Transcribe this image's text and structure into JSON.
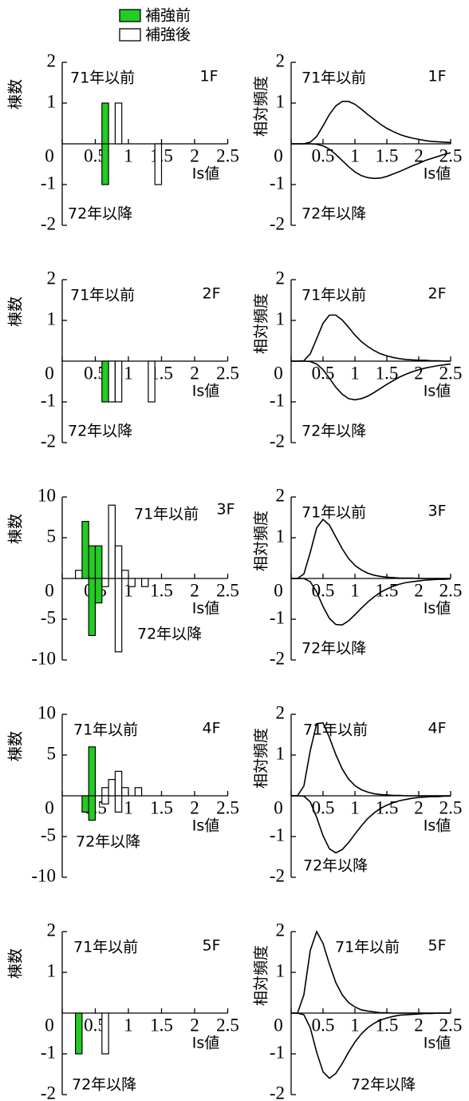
{
  "chart_data": [
    {
      "type": "histogram",
      "label": "1F",
      "upper_label": "71年以前",
      "lower_label": "72年以降",
      "xlabel": "Is値",
      "ylabel": "棟数",
      "bins": [
        0.6,
        0.7,
        0.8,
        0.9,
        1,
        1.1,
        1.2,
        1.3,
        1.4,
        1.5
      ],
      "series": [
        {
          "name": "補強前",
          "color": "#22cc22",
          "values": [
            1,
            0,
            0,
            0,
            0,
            0,
            0,
            0,
            0
          ]
        },
        {
          "name": "補強後",
          "color": "#ffffff",
          "values": [
            0,
            0,
            1,
            0,
            0,
            0,
            0,
            0,
            0
          ]
        },
        {
          "color": "#22cc22",
          "values": [
            -1,
            0,
            0,
            0,
            0,
            0,
            0,
            0,
            0
          ]
        },
        {
          "color": "#ffffff",
          "values": [
            0,
            0,
            0,
            0,
            0,
            0,
            0,
            0,
            -1
          ]
        }
      ],
      "xlim": [
        0,
        2.5
      ],
      "xticks": [
        0,
        0.5,
        1,
        1.5,
        2,
        2.5
      ],
      "ylim": [
        -2,
        2
      ],
      "yticks": [
        -2,
        -1,
        1,
        2
      ]
    },
    {
      "type": "line",
      "label": "1F",
      "upper_label": "71年以前",
      "lower_label": "72年以降",
      "xlabel": "Is値",
      "ylabel": "相対頻度",
      "x": [
        0,
        0.1,
        0.2,
        0.3,
        0.4,
        0.5,
        0.6,
        0.7,
        0.8,
        0.9,
        1,
        1.1,
        1.2,
        1.3,
        1.4,
        1.5,
        1.6,
        1.7,
        1.8,
        1.9,
        2,
        2.1,
        2.2,
        2.3,
        2.4,
        2.5
      ],
      "series": [
        {
          "color": "#000000",
          "values": [
            0,
            0,
            0,
            0.04,
            0.18,
            0.44,
            0.72,
            0.93,
            1.04,
            1.04,
            0.97,
            0.85,
            0.72,
            0.6,
            0.48,
            0.38,
            0.3,
            0.23,
            0.18,
            0.14,
            0.11,
            0.08,
            0.06,
            0.05,
            0.04,
            0.03
          ]
        },
        {
          "color": "#000000",
          "values": [
            0,
            0,
            0,
            0,
            -0.01,
            -0.05,
            -0.13,
            -0.26,
            -0.41,
            -0.56,
            -0.69,
            -0.78,
            -0.83,
            -0.85,
            -0.84,
            -0.8,
            -0.74,
            -0.68,
            -0.61,
            -0.54,
            -0.48,
            -0.41,
            -0.36,
            -0.31,
            -0.26,
            -0.22
          ]
        }
      ],
      "xlim": [
        0,
        2.5
      ],
      "xticks": [
        0,
        0.5,
        1,
        1.5,
        2,
        2.5
      ],
      "ylim": [
        -2,
        2
      ],
      "yticks": [
        -2,
        -1,
        1,
        2
      ]
    },
    {
      "type": "histogram",
      "label": "2F",
      "upper_label": "71年以前",
      "lower_label": "72年以降",
      "xlabel": "Is値",
      "ylabel": "棟数",
      "bins": [
        0.6,
        0.7,
        0.8,
        0.9,
        1,
        1.1,
        1.2,
        1.3,
        1.4
      ],
      "series": [
        {
          "color": "#22cc22",
          "values": [
            0,
            0,
            0,
            0,
            0,
            0,
            0,
            0
          ]
        },
        {
          "color": "#ffffff",
          "values": [
            0,
            0,
            0,
            0,
            0,
            0,
            0,
            0
          ]
        },
        {
          "color": "#22cc22",
          "values": [
            -1,
            0,
            0,
            0,
            0,
            0,
            0,
            0
          ]
        },
        {
          "color": "#ffffff",
          "values": [
            0,
            -1,
            -1,
            0,
            0,
            0,
            0,
            -1
          ]
        }
      ],
      "xlim": [
        0,
        2.5
      ],
      "xticks": [
        0,
        0.5,
        1,
        1.5,
        2,
        2.5
      ],
      "ylim": [
        -2,
        2
      ],
      "yticks": [
        -2,
        -1,
        1,
        2
      ]
    },
    {
      "type": "line",
      "label": "2F",
      "upper_label": "71年以前",
      "lower_label": "72年以降",
      "xlabel": "Is値",
      "ylabel": "相対頻度",
      "x": [
        0,
        0.1,
        0.2,
        0.3,
        0.4,
        0.5,
        0.6,
        0.7,
        0.8,
        0.9,
        1,
        1.1,
        1.2,
        1.3,
        1.4,
        1.5,
        1.6,
        1.7,
        1.8,
        1.9,
        2,
        2.1,
        2.2,
        2.3,
        2.4,
        2.5
      ],
      "series": [
        {
          "color": "#000000",
          "values": [
            0,
            0,
            0.01,
            0.18,
            0.55,
            0.93,
            1.13,
            1.13,
            1.01,
            0.83,
            0.64,
            0.48,
            0.36,
            0.26,
            0.18,
            0.13,
            0.09,
            0.06,
            0.04,
            0.03,
            0.02,
            0.02,
            0.01,
            0.01,
            0,
            0
          ]
        },
        {
          "color": "#000000",
          "values": [
            0,
            0,
            0,
            -0.01,
            -0.07,
            -0.21,
            -0.42,
            -0.64,
            -0.81,
            -0.92,
            -0.95,
            -0.92,
            -0.86,
            -0.77,
            -0.67,
            -0.57,
            -0.48,
            -0.39,
            -0.32,
            -0.26,
            -0.21,
            -0.17,
            -0.14,
            -0.11,
            -0.09,
            -0.07
          ]
        }
      ],
      "xlim": [
        0,
        2.5
      ],
      "xticks": [
        0,
        0.5,
        1,
        1.5,
        2,
        2.5
      ],
      "ylim": [
        -2,
        2
      ],
      "yticks": [
        -2,
        -1,
        1,
        2
      ]
    },
    {
      "type": "histogram",
      "label": "3F",
      "upper_label": "71年以前",
      "lower_label": "72年以降",
      "xlabel": "Is値",
      "ylabel": "棟数",
      "bins": [
        0.2,
        0.3,
        0.4,
        0.5,
        0.6,
        0.7,
        0.8,
        0.9,
        1,
        1.1,
        1.2,
        1.3
      ],
      "series": [
        {
          "color": "#22cc22",
          "values": [
            0,
            7,
            4,
            4,
            0,
            0,
            0,
            0,
            0,
            0,
            0
          ]
        },
        {
          "color": "#ffffff",
          "values": [
            1,
            0,
            0,
            0,
            0,
            9,
            4,
            1,
            0,
            0,
            0
          ]
        },
        {
          "color": "#22cc22",
          "values": [
            0,
            0,
            -7,
            -3,
            0,
            0,
            0,
            0,
            0,
            0,
            0
          ]
        },
        {
          "color": "#ffffff",
          "values": [
            0,
            0,
            0,
            0,
            -1,
            0,
            -9,
            0,
            -1,
            0,
            -1
          ]
        }
      ],
      "xlim": [
        0,
        2.5
      ],
      "xticks": [
        0,
        0.5,
        1,
        1.5,
        2,
        2.5
      ],
      "ylim": [
        -10,
        10
      ],
      "yticks": [
        -10,
        -5,
        5,
        10
      ]
    },
    {
      "type": "line",
      "label": "3F",
      "upper_label": "71年以前",
      "lower_label": "72年以降",
      "xlabel": "Is値",
      "ylabel": "相対頻度",
      "x": [
        0,
        0.1,
        0.2,
        0.3,
        0.4,
        0.5,
        0.6,
        0.7,
        0.8,
        0.9,
        1,
        1.1,
        1.2,
        1.3,
        1.4,
        1.5,
        1.6,
        1.7,
        1.8,
        1.9,
        2,
        2.1,
        2.2,
        2.3,
        2.4,
        2.5
      ],
      "series": [
        {
          "color": "#000000",
          "values": [
            0,
            0,
            0.11,
            0.64,
            1.24,
            1.45,
            1.31,
            1.02,
            0.73,
            0.49,
            0.32,
            0.21,
            0.13,
            0.08,
            0.05,
            0.03,
            0.02,
            0.01,
            0.01,
            0.01,
            0,
            0,
            0,
            0,
            0,
            0
          ]
        },
        {
          "color": "#000000",
          "values": [
            0,
            0,
            0,
            -0.08,
            -0.33,
            -0.69,
            -0.98,
            -1.13,
            -1.14,
            -1.04,
            -0.89,
            -0.73,
            -0.58,
            -0.45,
            -0.34,
            -0.26,
            -0.19,
            -0.14,
            -0.1,
            -0.08,
            -0.06,
            -0.04,
            -0.03,
            -0.02,
            -0.02,
            -0.01
          ]
        }
      ],
      "xlim": [
        0,
        2.5
      ],
      "xticks": [
        0,
        0.5,
        1,
        1.5,
        2,
        2.5
      ],
      "ylim": [
        -2,
        2
      ],
      "yticks": [
        -2,
        -1,
        1,
        2
      ]
    },
    {
      "type": "histogram",
      "label": "4F",
      "upper_label": "71年以前",
      "lower_label": "72年以降",
      "xlabel": "Is値",
      "ylabel": "棟数",
      "bins": [
        0.3,
        0.4,
        0.5,
        0.6,
        0.7,
        0.8,
        0.9,
        1,
        1.1,
        1.2
      ],
      "series": [
        {
          "color": "#22cc22",
          "values": [
            0,
            6,
            0,
            0,
            0,
            0,
            0,
            0,
            0
          ]
        },
        {
          "color": "#ffffff",
          "values": [
            0,
            0,
            0,
            1,
            2,
            3,
            1,
            0,
            1
          ]
        },
        {
          "color": "#22cc22",
          "values": [
            -2,
            -3,
            0,
            0,
            0,
            0,
            0,
            0,
            0
          ]
        },
        {
          "color": "#ffffff",
          "values": [
            0,
            0,
            0,
            -1,
            0,
            -2,
            0,
            0,
            0
          ]
        }
      ],
      "xlim": [
        0,
        2.5
      ],
      "xticks": [
        0,
        0.5,
        1,
        1.5,
        2,
        2.5
      ],
      "ylim": [
        -10,
        10
      ],
      "yticks": [
        -10,
        -5,
        5,
        10
      ]
    },
    {
      "type": "line",
      "label": "4F",
      "upper_label": "71年以前",
      "lower_label": "72年以降",
      "xlabel": "Is値",
      "ylabel": "相対頻度",
      "x": [
        0,
        0.1,
        0.2,
        0.3,
        0.4,
        0.5,
        0.6,
        0.7,
        0.8,
        0.9,
        1,
        1.1,
        1.2,
        1.3,
        1.4,
        1.5,
        1.6,
        1.7,
        1.8,
        1.9,
        2,
        2.1,
        2.2,
        2.3,
        2.4,
        2.5
      ],
      "series": [
        {
          "color": "#000000",
          "values": [
            0,
            0,
            0.24,
            1.11,
            1.77,
            1.79,
            1.43,
            1.01,
            0.66,
            0.41,
            0.25,
            0.15,
            0.09,
            0.05,
            0.03,
            0.02,
            0.01,
            0.01,
            0,
            0,
            0,
            0,
            0,
            0,
            0,
            0
          ]
        },
        {
          "color": "#000000",
          "values": [
            0,
            0,
            -0.01,
            -0.15,
            -0.53,
            -0.98,
            -1.3,
            -1.4,
            -1.32,
            -1.15,
            -0.94,
            -0.74,
            -0.56,
            -0.42,
            -0.31,
            -0.23,
            -0.17,
            -0.12,
            -0.09,
            -0.06,
            -0.04,
            -0.03,
            -0.02,
            -0.02,
            -0.01,
            -0.01
          ]
        }
      ],
      "xlim": [
        0,
        2.5
      ],
      "xticks": [
        0,
        0.5,
        1,
        1.5,
        2,
        2.5
      ],
      "ylim": [
        -2,
        2
      ],
      "yticks": [
        -2,
        -1,
        1,
        2
      ]
    },
    {
      "type": "histogram",
      "label": "5F",
      "upper_label": "71年以前",
      "lower_label": "72年以降",
      "xlabel": "Is値",
      "ylabel": "棟数",
      "bins": [
        0.2,
        0.3,
        0.4,
        0.5,
        0.6,
        0.7
      ],
      "series": [
        {
          "color": "#22cc22",
          "values": [
            0,
            0,
            0,
            0,
            0
          ]
        },
        {
          "color": "#ffffff",
          "values": [
            0,
            0,
            0,
            0,
            0
          ]
        },
        {
          "color": "#22cc22",
          "values": [
            -1,
            0,
            0,
            0,
            0
          ]
        },
        {
          "color": "#ffffff",
          "values": [
            0,
            0,
            0,
            0,
            -1
          ]
        }
      ],
      "xlim": [
        0,
        2.5
      ],
      "xticks": [
        0,
        0.5,
        1,
        1.5,
        2,
        2.5
      ],
      "ylim": [
        -2,
        2
      ],
      "yticks": [
        -2,
        -1,
        1,
        2
      ]
    },
    {
      "type": "line",
      "label": "5F",
      "upper_label": "71年以前",
      "lower_label": "72年以降",
      "xlabel": "Is値",
      "ylabel": "相対頻度",
      "x": [
        0,
        0.1,
        0.2,
        0.3,
        0.4,
        0.5,
        0.6,
        0.7,
        0.8,
        0.9,
        1,
        1.1,
        1.2,
        1.3,
        1.4,
        1.5,
        1.6,
        1.7,
        1.8,
        1.9,
        2,
        2.1,
        2.2,
        2.3,
        2.4,
        2.5
      ],
      "series": [
        {
          "color": "#000000",
          "values": [
            0,
            0,
            0.45,
            1.54,
            2,
            1.71,
            1.2,
            0.75,
            0.45,
            0.26,
            0.15,
            0.08,
            0.05,
            0.03,
            0.01,
            0.01,
            0,
            0,
            0,
            0,
            0,
            0,
            0,
            0,
            0,
            0
          ]
        },
        {
          "color": "#000000",
          "values": [
            0,
            0,
            -0.04,
            -0.36,
            -0.96,
            -1.44,
            -1.6,
            -1.48,
            -1.24,
            -0.96,
            -0.71,
            -0.51,
            -0.36,
            -0.25,
            -0.17,
            -0.12,
            -0.08,
            -0.05,
            -0.04,
            -0.03,
            -0.02,
            -0.01,
            -0.01,
            0,
            0,
            0
          ]
        }
      ],
      "xlim": [
        0,
        2.5
      ],
      "xticks": [
        0,
        0.5,
        1,
        1.5,
        2,
        2.5
      ],
      "ylim": [
        -2,
        2
      ],
      "yticks": [
        -2,
        -1,
        1,
        2
      ]
    }
  ]
}
